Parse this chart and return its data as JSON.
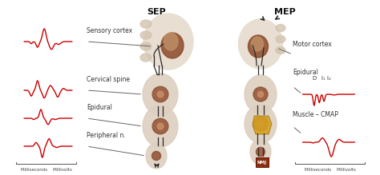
{
  "title_sep": "SEP",
  "title_mep": "MEP",
  "bg_color": "#ffffff",
  "waveform_color": "#cc0000",
  "line_color": "#2a2a2a",
  "annotation_color": "#333333",
  "sep_labels": [
    "Sensory cortex",
    "Cervical spine",
    "Epidural",
    "Peripheral n."
  ],
  "mep_labels": [
    "Motor cortex",
    "Epidural",
    "Muscle – CMAP"
  ],
  "epidural_sub_d": "D",
  "epidural_sub_i": "I₁ I₂",
  "nmj_label": "NMJ",
  "bottom_left": "Milliseconds    Millivolts",
  "bottom_right": "Milliseconds    Millivolts",
  "figsize": [
    4.74,
    2.19
  ],
  "dpi": 100,
  "brain_outer_color": "#e8ddd0",
  "brain_gyri_color": "#d4c4b0",
  "brain_inner_color": "#8b4a2a",
  "spine_outer_color": "#ddd0c0",
  "spine_inner_color": "#8b4a2a",
  "nerve_color": "#d4a020",
  "nmj_color": "#8b3010"
}
